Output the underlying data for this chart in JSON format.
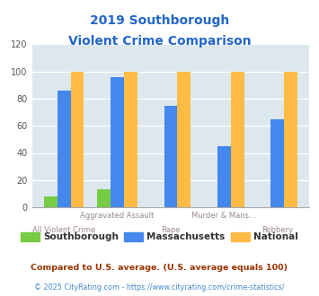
{
  "title_line1": "2019 Southborough",
  "title_line2": "Violent Crime Comparison",
  "categories": [
    "All Violent Crime",
    "Aggravated Assault",
    "Rape",
    "Murder & Mans...",
    "Robbery"
  ],
  "southborough": [
    8,
    13,
    0,
    0,
    0
  ],
  "massachusetts": [
    86,
    96,
    75,
    45,
    65
  ],
  "national": [
    100,
    100,
    100,
    100,
    100
  ],
  "color_southborough": "#77cc44",
  "color_massachusetts": "#4488ee",
  "color_national": "#ffbb44",
  "ylim": [
    0,
    120
  ],
  "yticks": [
    0,
    20,
    40,
    60,
    80,
    100,
    120
  ],
  "background_color": "#dde8ee",
  "legend_labels": [
    "Southborough",
    "Massachusetts",
    "National"
  ],
  "footnote1": "Compared to U.S. average. (U.S. average equals 100)",
  "footnote2": "© 2025 CityRating.com - https://www.cityrating.com/crime-statistics/",
  "title_color": "#2266cc",
  "legend_text_color": "#333333",
  "footnote1_color": "#993300",
  "footnote2_color": "#4488cc",
  "xtick_color": "#998888"
}
